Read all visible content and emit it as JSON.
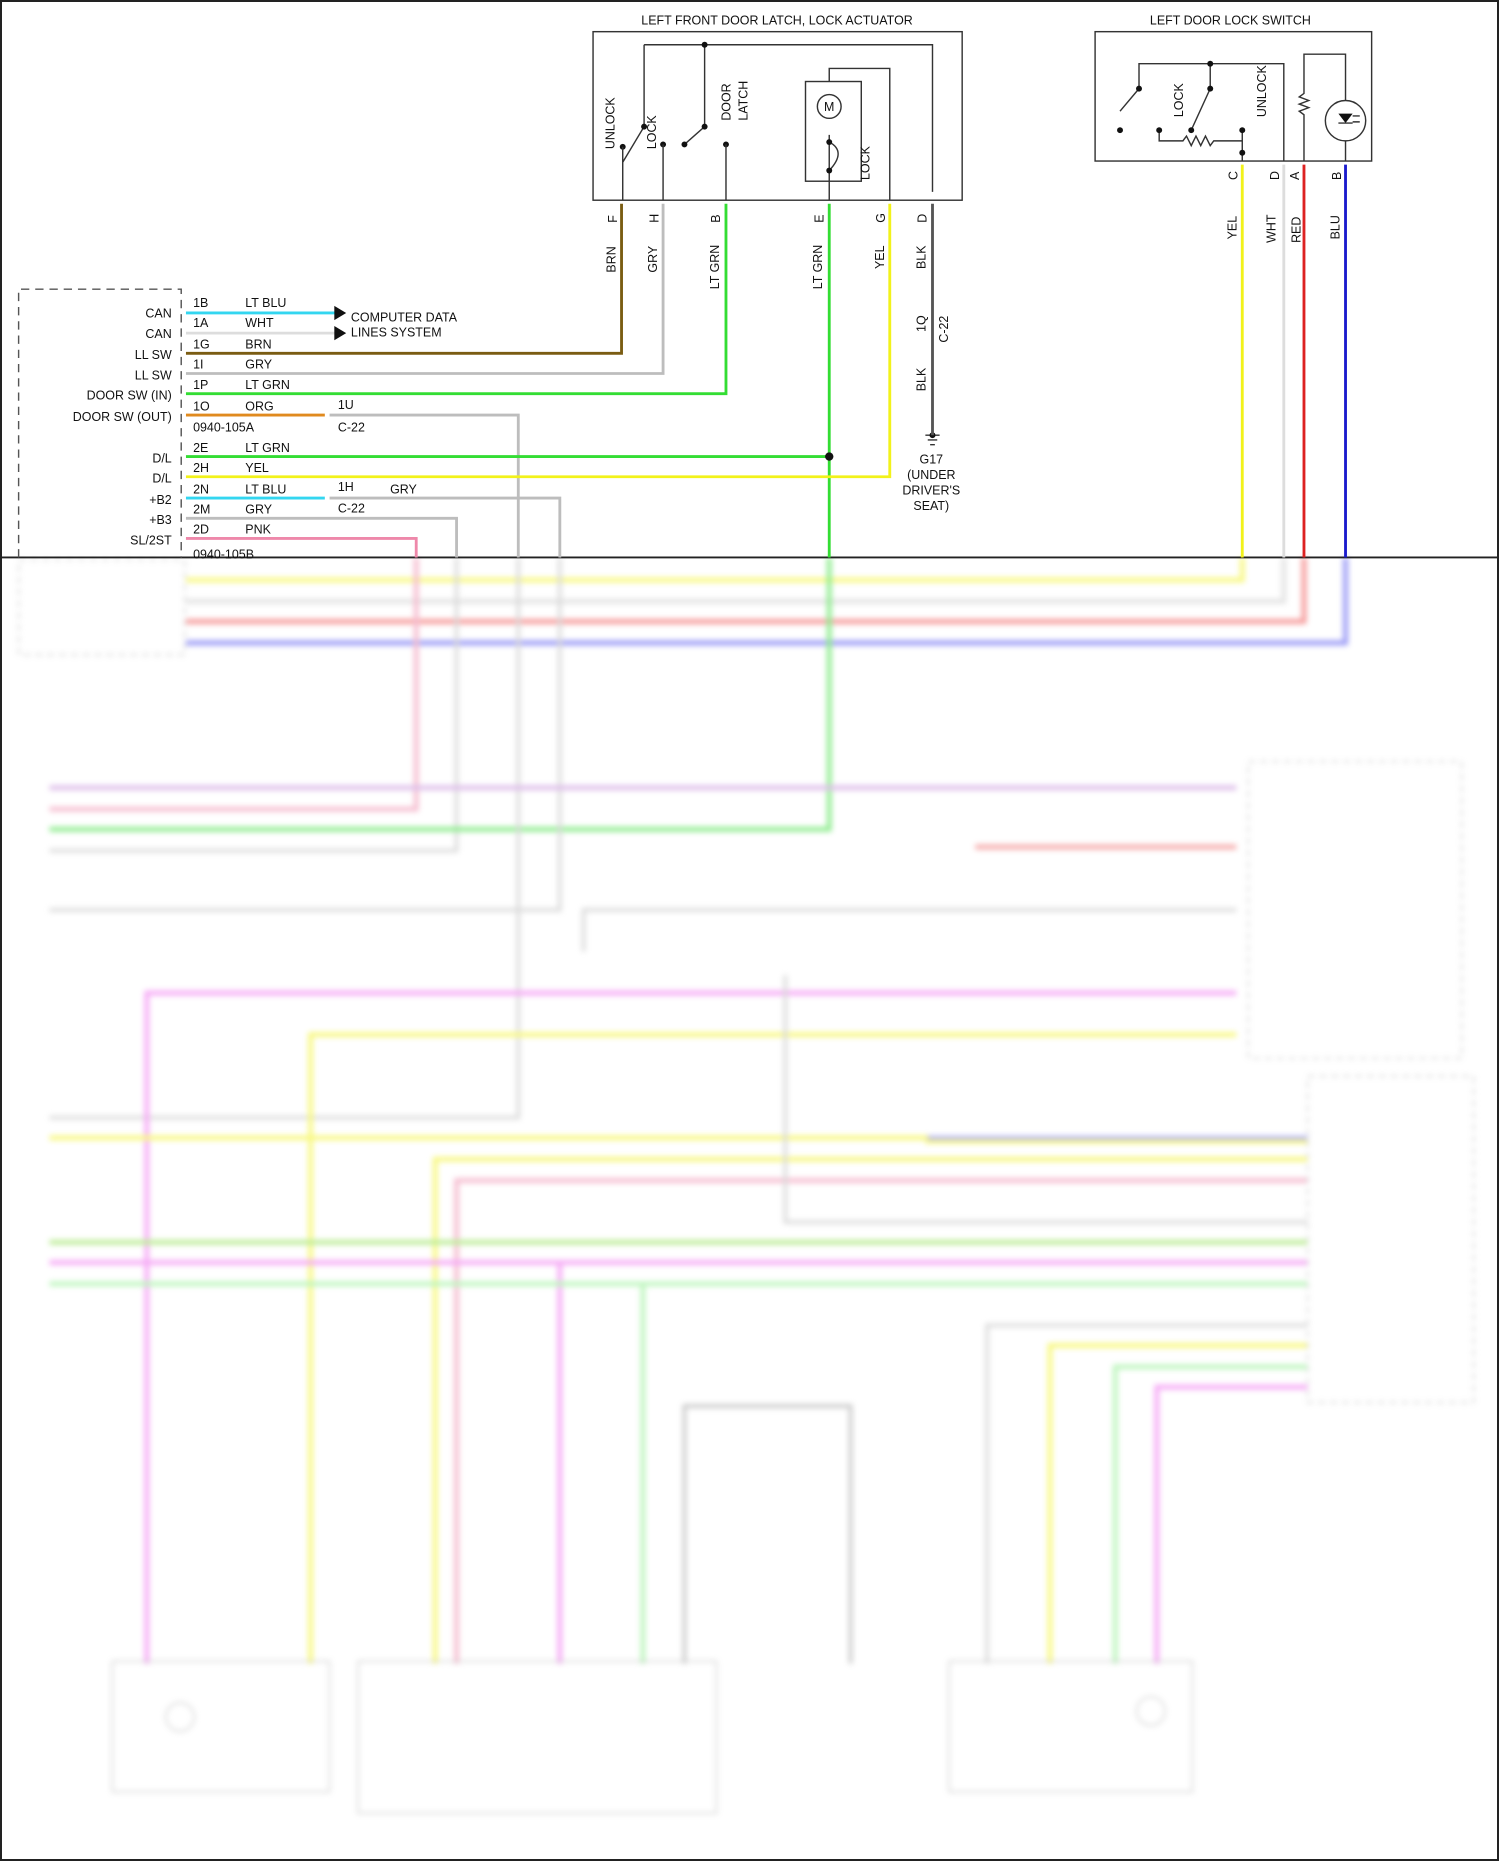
{
  "actuator": {
    "title": "LEFT FRONT DOOR LATCH, LOCK ACTUATOR",
    "labels": {
      "unlock": "UNLOCK",
      "lock": "LOCK",
      "door_latch_1": "DOOR",
      "door_latch_2": "LATCH",
      "motor": "M",
      "lock2": "LOCK"
    },
    "pins": [
      {
        "pin": "F",
        "color_name": "BRN",
        "hex": "#7a5c12"
      },
      {
        "pin": "H",
        "color_name": "GRY",
        "hex": "#bdbdbd"
      },
      {
        "pin": "B",
        "color_name": "LT GRN",
        "hex": "#33dd33"
      },
      {
        "pin": "E",
        "color_name": "LT GRN",
        "hex": "#33dd33"
      },
      {
        "pin": "G",
        "color_name": "YEL",
        "hex": "#f2f21a"
      },
      {
        "pin": "D",
        "color_name": "BLK",
        "hex": "#555555"
      }
    ],
    "connector_pin": "1Q",
    "connector": "C-22",
    "blk_lower": "BLK",
    "ground": {
      "id": "G17",
      "line1": "(UNDER",
      "line2": "DRIVER'S",
      "line3": "SEAT)"
    }
  },
  "switch": {
    "title": "LEFT DOOR LOCK SWITCH",
    "labels": {
      "lock": "LOCK",
      "unlock": "UNLOCK"
    },
    "pins": [
      {
        "pin": "C",
        "color_name": "YEL",
        "hex": "#f2f21a"
      },
      {
        "pin": "D",
        "color_name": "WHT",
        "hex": "#dddddd"
      },
      {
        "pin": "A",
        "color_name": "RED",
        "hex": "#dd2222"
      },
      {
        "pin": "B",
        "color_name": "BLU",
        "hex": "#1a1acc"
      }
    ]
  },
  "module": {
    "rows": [
      {
        "label": "CAN",
        "pin": "1B",
        "wire": "LT BLU",
        "hex": "#33d6f0"
      },
      {
        "label": "CAN",
        "pin": "1A",
        "wire": "WHT",
        "hex": "#dddddd"
      },
      {
        "label": "LL SW",
        "pin": "1G",
        "wire": "BRN",
        "hex": "#7a5c12"
      },
      {
        "label": "LL SW",
        "pin": "1I",
        "wire": "GRY",
        "hex": "#bdbdbd"
      },
      {
        "label": "DOOR SW (IN)",
        "pin": "1P",
        "wire": "LT GRN",
        "hex": "#33dd33"
      },
      {
        "label": "DOOR SW (OUT)",
        "pin": "1O",
        "wire": "ORG",
        "hex": "#e08a1e"
      },
      {
        "label": "D/L",
        "pin": "2E",
        "wire": "LT GRN",
        "hex": "#33dd33"
      },
      {
        "label": "D/L",
        "pin": "2H",
        "wire": "YEL",
        "hex": "#f2f21a"
      },
      {
        "label": "+B2",
        "pin": "2N",
        "wire": "LT BLU",
        "hex": "#33d6f0"
      },
      {
        "label": "+B3",
        "pin": "2M",
        "wire": "GRY",
        "hex": "#bdbdbd"
      },
      {
        "label": "SL/2ST",
        "pin": "2D",
        "wire": "PNK",
        "hex": "#ee88aa"
      }
    ],
    "connector_a": "0940-105A",
    "connector_b": "0940-105B",
    "computer_data_1": "COMPUTER DATA",
    "computer_data_2": "LINES SYSTEM",
    "c22_a_pin": "1U",
    "c22_a": "C-22",
    "c22_b_pin": "1H",
    "c22_b_wire": "GRY",
    "c22_b": "C-22"
  }
}
